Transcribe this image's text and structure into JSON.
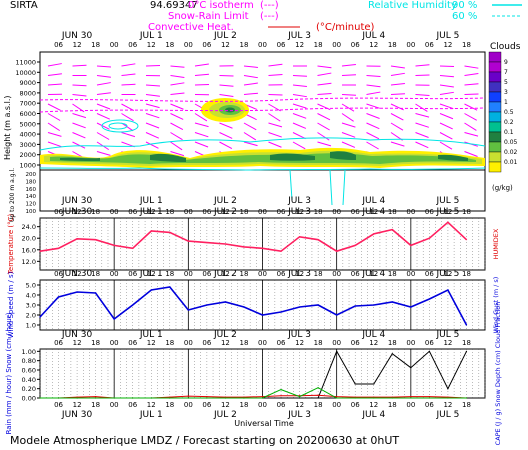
{
  "header": {
    "station": "SIRTA",
    "coords": "94.69347",
    "legend": {
      "isotherm": "0°C isotherm",
      "snow_rain": "Snow-Rain Limit",
      "convective": "Convective Heat.",
      "convective_unit": "(°C/minute)",
      "rh_label": "Relative Humidity",
      "rh_90": "90 %",
      "rh_60": "60 %",
      "dash": "(---)"
    }
  },
  "time_axis": {
    "days": [
      "JUN 30",
      "JUL 1",
      "JUL 2",
      "JUL 3",
      "JUL 4",
      "JUL 5"
    ],
    "hours": [
      "06",
      "12",
      "18",
      "00"
    ],
    "xlabel": "Universal Time"
  },
  "clouds_panel": {
    "ylabel": "Height (m a.s.l.)",
    "ylabel_low": "Up to 200 m a.g.l.",
    "yticks_high": [
      "11000",
      "10000",
      "9000",
      "8000",
      "7000",
      "6000",
      "5000",
      "4000",
      "3000",
      "2000",
      "1000"
    ],
    "yticks_low": [
      "200",
      "180",
      "160",
      "140",
      "120",
      "100"
    ],
    "colorbar_title": "Clouds",
    "colorbar_unit": "(g/kg)",
    "colorbar_ticks": [
      "9",
      "7",
      "5",
      "3",
      "1",
      "0.5",
      "0.2",
      "0.1",
      "0.05",
      "0.02",
      "0.01"
    ],
    "colorbar_colors": [
      "#a000c8",
      "#b000d0",
      "#6a00c8",
      "#4030c0",
      "#1040ff",
      "#2080ff",
      "#00b0e0",
      "#00c090",
      "#208040",
      "#60c040",
      "#c8e030",
      "#fff000"
    ]
  },
  "footer": {
    "text": "Modele Atmospherique LMDZ / Forecast starting on 20200630 at 0hUT"
  },
  "chart_data": [
    {
      "type": "line",
      "title": "",
      "ylabel": "Temperature (°C)",
      "ylabel_right": "HUMIDEX",
      "yticks": [
        "24.0",
        "20.0",
        "16.0",
        "12.0"
      ],
      "ylim": [
        9,
        27
      ],
      "x": [
        0,
        6,
        12,
        18,
        24,
        30,
        36,
        42,
        48,
        54,
        60,
        66,
        72,
        78,
        84,
        90,
        96,
        102,
        108,
        114,
        120,
        126,
        132,
        138
      ],
      "series": [
        {
          "values": [
            15.5,
            16.5,
            19.8,
            19.5,
            17.5,
            16.5,
            22.5,
            22.0,
            19.0,
            18.5,
            18.0,
            17.0,
            16.5,
            15.5,
            20.5,
            19.5,
            15.5,
            17.5,
            21.5,
            23.0,
            17.5,
            20.0,
            25.5,
            19.5
          ]
        }
      ]
    },
    {
      "type": "line",
      "title": "",
      "ylabel": "Wind Speed (m / s)",
      "ylabel_right": "Wind Gust (m / s)",
      "yticks": [
        "5.0",
        "4.0",
        "3.0",
        "2.0",
        "1.0"
      ],
      "ylim": [
        0.5,
        5.5
      ],
      "x": [
        0,
        6,
        12,
        18,
        24,
        30,
        36,
        42,
        48,
        54,
        60,
        66,
        72,
        78,
        84,
        90,
        96,
        102,
        108,
        114,
        120,
        126,
        132,
        138
      ],
      "series": [
        {
          "values": [
            1.8,
            3.8,
            4.3,
            4.2,
            1.6,
            3.0,
            4.5,
            4.8,
            2.5,
            3.0,
            3.3,
            2.8,
            2.0,
            2.3,
            2.8,
            3.0,
            2.0,
            2.9,
            3.0,
            3.3,
            2.8,
            3.6,
            4.5,
            1.0
          ]
        }
      ]
    },
    {
      "type": "line",
      "title": "",
      "ylabel": "Rain (mm / hour) Snow (cm / hour)",
      "ylabel_right": "CAPE (J / g) Snow Depth (cm) Cloud Fraction",
      "yticks": [
        "1.00",
        "0.80",
        "0.60",
        "0.40",
        "0.20",
        "0.00"
      ],
      "ylim": [
        0,
        1.05
      ],
      "x": [
        0,
        6,
        12,
        18,
        24,
        30,
        36,
        42,
        48,
        54,
        60,
        66,
        72,
        78,
        84,
        90,
        96,
        102,
        108,
        114,
        120,
        126,
        132,
        138
      ],
      "series": [
        {
          "name": "Cloud Fraction",
          "values": [
            0.0,
            0.0,
            0.0,
            0.0,
            0.0,
            0.0,
            0.0,
            0.0,
            0.0,
            0.0,
            0.0,
            0.0,
            0.0,
            0.0,
            0.0,
            0.0,
            1.0,
            0.3,
            0.3,
            0.95,
            0.65,
            1.0,
            0.2,
            1.0
          ]
        },
        {
          "name": "CAPE",
          "values": [
            0.0,
            0.0,
            0.02,
            0.03,
            0.0,
            0.0,
            0.0,
            0.02,
            0.04,
            0.03,
            0.02,
            0.02,
            0.03,
            0.05,
            0.05,
            0.06,
            0.03,
            0.02,
            0.02,
            0.02,
            0.03,
            0.03,
            0.02,
            0.0
          ]
        },
        {
          "name": "Rain",
          "values": [
            0.0,
            0.0,
            0.0,
            0.0,
            0.0,
            0.0,
            0.0,
            0.0,
            0.0,
            0.0,
            0.0,
            0.0,
            0.0,
            0.18,
            0.03,
            0.22,
            0.0,
            0.0,
            0.0,
            0.0,
            0.0,
            0.0,
            0.0,
            0.0
          ]
        }
      ]
    }
  ]
}
